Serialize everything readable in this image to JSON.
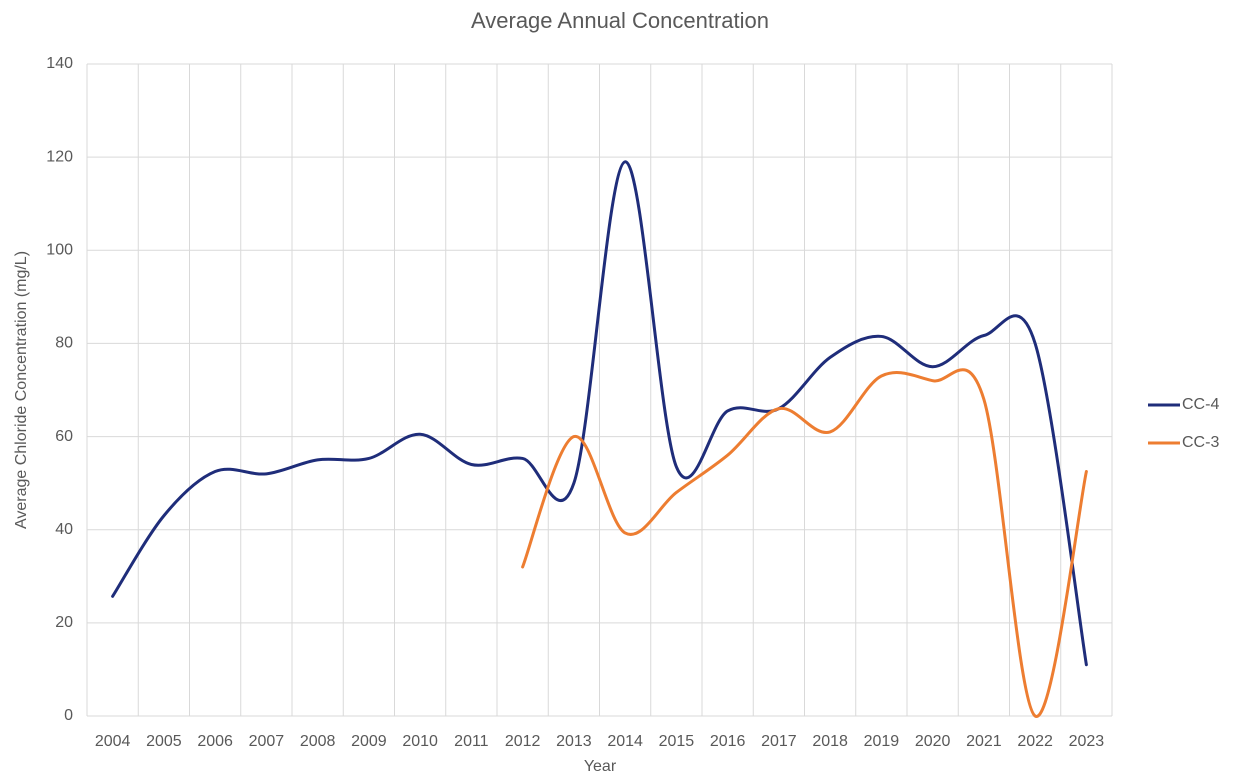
{
  "chart_data": {
    "type": "line",
    "title": "Average Annual Concentration",
    "x_label": "Year",
    "y_label": "Average Chloride Concentration (mg/L)",
    "categories": [
      "2004",
      "2005",
      "2006",
      "2007",
      "2008",
      "2009",
      "2010",
      "2011",
      "2012",
      "2013",
      "2014",
      "2015",
      "2016",
      "2017",
      "2018",
      "2019",
      "2020",
      "2021",
      "2022",
      "2023"
    ],
    "series": [
      {
        "name": "CC-4",
        "color": "#1f2d7a",
        "values": [
          25.7,
          43,
          52.5,
          52,
          55,
          55.3,
          60.5,
          54,
          55.3,
          50,
          119,
          53.5,
          65.5,
          66,
          77,
          81.5,
          75,
          81.7,
          80,
          11
        ]
      },
      {
        "name": "CC-3",
        "color": "#ed7d31",
        "values": [
          null,
          null,
          null,
          null,
          null,
          null,
          null,
          null,
          32,
          60,
          39.3,
          48,
          56,
          66,
          61,
          73,
          72,
          68,
          0,
          52.5
        ]
      }
    ],
    "ylim": [
      0,
      140
    ],
    "yticks": [
      0,
      20,
      40,
      60,
      80,
      100,
      120,
      140
    ],
    "grid": true,
    "legend": "right",
    "smooth": true
  }
}
